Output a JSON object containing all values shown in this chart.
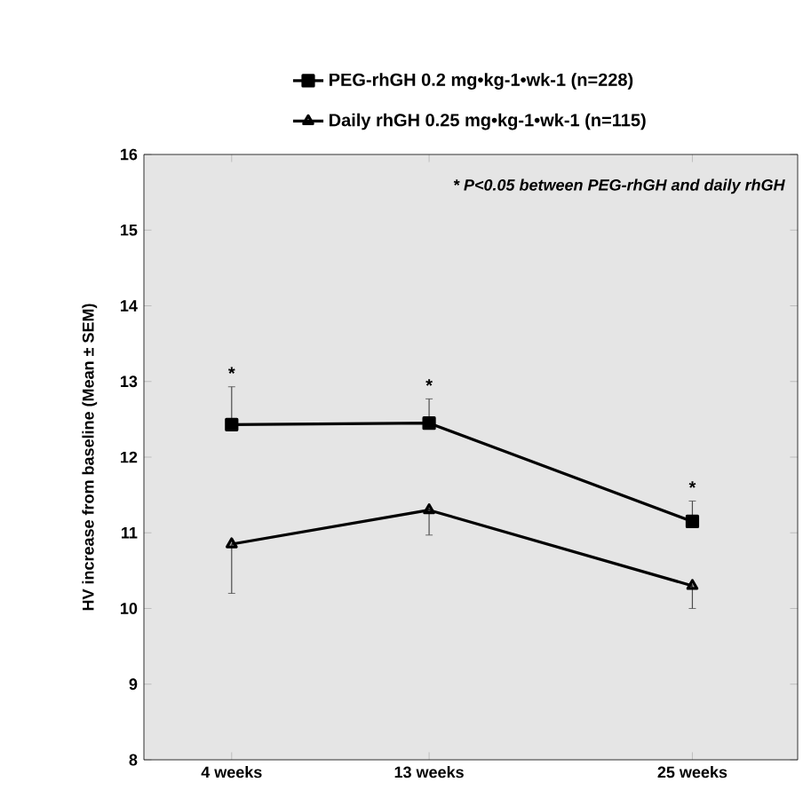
{
  "chart_data": {
    "type": "line",
    "ylabel": "HV increase from baseline (Mean ± SEM)",
    "x": [
      4,
      13,
      25
    ],
    "xlim": [
      0,
      29.8
    ],
    "ylim": [
      8,
      16
    ],
    "xticks": [
      {
        "value": 4,
        "label": "4 weeks"
      },
      {
        "value": 13,
        "label": "13 weeks"
      },
      {
        "value": 25,
        "label": "25 weeks"
      }
    ],
    "yticks": [
      8,
      9,
      10,
      11,
      12,
      13,
      14,
      15,
      16
    ],
    "series": [
      {
        "name": "PEG-rhGH 0.2 mg•kg-1•wk-1    (n=228)",
        "color": "#000000",
        "marker": "square",
        "values": [
          12.43,
          12.45,
          11.15
        ],
        "errors": [
          [
            12.43,
            12.93
          ],
          [
            12.45,
            12.77
          ],
          [
            11.15,
            11.42
          ]
        ]
      },
      {
        "name": "Daily rhGH 0.25 mg•kg-1•wk-1 (n=115)",
        "color": "#000000",
        "marker": "triangle",
        "values": [
          10.85,
          11.3,
          10.3
        ],
        "errors": [
          [
            10.2,
            10.85
          ],
          [
            10.97,
            11.3
          ],
          [
            10.0,
            10.3
          ]
        ]
      }
    ],
    "annotations": [
      "* P<0.05  between PEG-rhGH and daily rhGH",
      {
        "text": "*",
        "x": 4,
        "y": 12.43
      },
      {
        "text": "*",
        "x": 13,
        "y": 12.45
      },
      {
        "text": "*",
        "x": 25,
        "y": 11.15
      }
    ],
    "legend": "top",
    "grid": false,
    "line_style": "solid"
  }
}
